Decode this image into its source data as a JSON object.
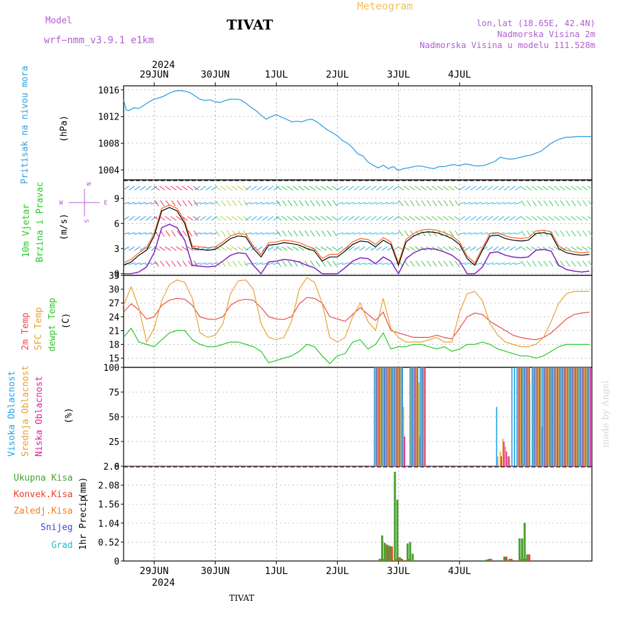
{
  "header": {
    "model_label": "Model",
    "model_name": "wrf−nmm_v3.9.1  e1km",
    "title": "TIVAT",
    "product": "Meteogram",
    "coords": "lon,lat (18.65E, 42.4N)",
    "height": "Nadmorska Visina 2m",
    "model_height": "Nadmorska Visina u modelu 111.528m",
    "footer_station": "TIVAT",
    "credit": "made by Angel"
  },
  "colors": {
    "pressure": "#2f9fe0",
    "t2m": "#e84a4a",
    "tsfc": "#e8a030",
    "dewpt": "#28c828",
    "cloud_high": "#20a0e8",
    "cloud_mid": "#e8a030",
    "cloud_low": "#e020a0",
    "precip_total": "#48a030",
    "precip_conv": "#e84030",
    "precip_strat": "#f08020",
    "snow": "#4040e0",
    "hail": "#20c0c0",
    "label_purple": "#b060d0"
  },
  "chart_data": [
    {
      "type": "line",
      "title": "",
      "ylabel": "Pritisak na nivou mora",
      "yunit": "(hPa)",
      "ylim": [
        1002.5,
        1016.6
      ],
      "yticks": [
        "1016",
        "1012",
        "1008",
        "1004"
      ],
      "x_hours_from_29jun_00z": [
        -12,
        -11,
        -10,
        -8,
        -6,
        -4,
        -2,
        0,
        2,
        4,
        6,
        8,
        10,
        12,
        14,
        16,
        18,
        20,
        22,
        24,
        26,
        28,
        30,
        32,
        34,
        36,
        38,
        40,
        42,
        44,
        46,
        48,
        50,
        52,
        54,
        56,
        58,
        60,
        62,
        64,
        66,
        68,
        70,
        72,
        74,
        76,
        78,
        80,
        82,
        84,
        86,
        88,
        90,
        92,
        94,
        96,
        98,
        100,
        102,
        104,
        106,
        108,
        110,
        112,
        114,
        116,
        118,
        120,
        122,
        124,
        126,
        128,
        130,
        132,
        134,
        136,
        138,
        140,
        142,
        144,
        146,
        148,
        150,
        152,
        154,
        156,
        158,
        160,
        162,
        164,
        166,
        168,
        170,
        172
      ],
      "values": [
        1014.5,
        1013.0,
        1012.9,
        1013.3,
        1013.2,
        1013.7,
        1014.2,
        1014.6,
        1014.8,
        1015.1,
        1015.5,
        1015.8,
        1015.9,
        1015.8,
        1015.6,
        1015.1,
        1014.6,
        1014.4,
        1014.5,
        1014.2,
        1014.1,
        1014.4,
        1014.6,
        1014.6,
        1014.5,
        1014.0,
        1013.4,
        1012.9,
        1012.2,
        1011.6,
        1012.0,
        1012.3,
        1011.9,
        1011.6,
        1011.2,
        1011.3,
        1011.2,
        1011.5,
        1011.6,
        1011.2,
        1010.6,
        1010.0,
        1009.6,
        1009.1,
        1008.4,
        1008.0,
        1007.3,
        1006.4,
        1006.1,
        1005.2,
        1004.7,
        1004.3,
        1004.7,
        1004.2,
        1004.5,
        1003.9,
        1004.2,
        1004.3,
        1004.5,
        1004.6,
        1004.5,
        1004.3,
        1004.2,
        1004.5,
        1004.5,
        1004.7,
        1004.8,
        1004.6,
        1004.9,
        1004.8,
        1004.6,
        1004.6,
        1004.7,
        1005.0,
        1005.3,
        1005.9,
        1005.7,
        1005.6,
        1005.7,
        1005.9,
        1006.1,
        1006.2,
        1006.5,
        1006.8,
        1007.4,
        1008.0,
        1008.4,
        1008.7,
        1008.9,
        1008.9,
        1009.0,
        1009.0,
        1009.0,
        1009.0
      ]
    },
    {
      "type": "line",
      "title": "",
      "ylabel": "10m Vjetar",
      "ylabel2": "Brzina i Pravac",
      "yunit": "(m/s)",
      "ylim": [
        -0.2,
        11.2
      ],
      "yticks": [
        "9",
        "6",
        "3",
        "0"
      ],
      "compass": {
        "n": "N",
        "s": "S",
        "e": "E",
        "w": "W"
      },
      "x_hours_from_29jun_00z": [
        -12,
        -9,
        -6,
        -3,
        0,
        3,
        6,
        9,
        12,
        15,
        18,
        21,
        24,
        27,
        30,
        33,
        36,
        39,
        42,
        45,
        48,
        51,
        54,
        57,
        60,
        63,
        66,
        69,
        72,
        75,
        78,
        81,
        84,
        87,
        90,
        93,
        96,
        99,
        102,
        105,
        108,
        111,
        114,
        117,
        120,
        123,
        126,
        129,
        132,
        135,
        138,
        141,
        144,
        147,
        150,
        153,
        156,
        159,
        162,
        165,
        168,
        171
      ],
      "values": [
        1.0,
        1.4,
        2.2,
        2.8,
        4.5,
        7.5,
        7.9,
        7.5,
        6.0,
        3.0,
        2.9,
        2.8,
        2.9,
        3.5,
        4.2,
        4.5,
        4.4,
        3.0,
        2.0,
        3.4,
        3.5,
        3.7,
        3.6,
        3.4,
        3.0,
        2.7,
        1.5,
        2.0,
        2.0,
        2.7,
        3.5,
        3.9,
        3.8,
        3.2,
        4.0,
        3.5,
        1.0,
        3.8,
        4.5,
        4.9,
        5.0,
        4.9,
        4.6,
        4.2,
        3.5,
        1.8,
        1.0,
        2.8,
        4.5,
        4.6,
        4.2,
        4.0,
        3.9,
        4.0,
        4.8,
        4.9,
        4.7,
        3.0,
        2.5,
        2.3,
        2.2,
        2.3
      ],
      "arrow_bands": [
        {
          "x0": -12,
          "x1": 0,
          "color": "#2090e0"
        },
        {
          "x0": 0,
          "x1": 16,
          "color": "#e83050"
        },
        {
          "x0": 16,
          "x1": 24,
          "color": "#20a0e8"
        },
        {
          "x0": 24,
          "x1": 36,
          "color": "#a0d830"
        },
        {
          "x0": 36,
          "x1": 48,
          "color": "#20a8e8"
        },
        {
          "x0": 48,
          "x1": 72,
          "color": "#28c060"
        },
        {
          "x0": 72,
          "x1": 96,
          "color": "#20b8d0"
        },
        {
          "x0": 96,
          "x1": 120,
          "color": "#50c040"
        },
        {
          "x0": 120,
          "x1": 144,
          "color": "#20b0e0"
        },
        {
          "x0": 144,
          "x1": 172,
          "color": "#40c870"
        }
      ]
    },
    {
      "type": "line",
      "title": "",
      "ylabel": "2m Temp",
      "ylabel2": "SFC Temp",
      "ylabel3": "dewpt Temp",
      "yunit": "(C)",
      "ylim": [
        13,
        33
      ],
      "yticks": [
        "33",
        "30",
        "27",
        "24",
        "21",
        "18",
        "15"
      ],
      "x_hours_from_29jun_00z": [
        -12,
        -9,
        -6,
        -3,
        0,
        3,
        6,
        9,
        12,
        15,
        18,
        21,
        24,
        27,
        30,
        33,
        36,
        39,
        42,
        45,
        48,
        51,
        54,
        57,
        60,
        63,
        66,
        69,
        72,
        75,
        78,
        81,
        84,
        87,
        90,
        93,
        96,
        99,
        102,
        105,
        108,
        111,
        114,
        117,
        120,
        123,
        126,
        129,
        132,
        135,
        138,
        141,
        144,
        147,
        150,
        153,
        156,
        159,
        162,
        165,
        168,
        171
      ],
      "series": [
        {
          "name": "2m Temp",
          "color_key": "t2m",
          "values": [
            25.0,
            26.8,
            25.5,
            23.5,
            24.0,
            26.5,
            27.6,
            28.0,
            27.8,
            26.5,
            24.0,
            23.5,
            23.4,
            24.0,
            26.5,
            27.5,
            27.8,
            27.6,
            26.0,
            24.0,
            23.5,
            23.4,
            24.0,
            26.8,
            28.2,
            28.0,
            27.0,
            24.0,
            23.5,
            23.0,
            24.5,
            26.0,
            24.5,
            23.2,
            25.0,
            21.0,
            20.5,
            20.0,
            19.5,
            19.5,
            19.5,
            20.0,
            19.5,
            19.2,
            21.5,
            24.0,
            24.8,
            24.5,
            23.0,
            22.0,
            21.0,
            20.0,
            19.5,
            19.2,
            19.0,
            19.5,
            20.5,
            22.0,
            23.5,
            24.5,
            24.8,
            25.0
          ]
        },
        {
          "name": "SFC Temp",
          "color_key": "tsfc",
          "values": [
            26.5,
            30.5,
            26.0,
            18.5,
            21.5,
            27.5,
            31.0,
            32.0,
            31.5,
            28.0,
            20.5,
            19.5,
            20.0,
            22.5,
            29.0,
            31.8,
            32.0,
            30.0,
            22.5,
            19.5,
            19.0,
            19.5,
            23.0,
            30.0,
            32.5,
            31.5,
            27.0,
            19.5,
            18.5,
            19.5,
            24.0,
            27.0,
            23.0,
            21.0,
            28.0,
            21.5,
            19.5,
            18.5,
            18.5,
            18.5,
            19.0,
            19.5,
            18.5,
            18.5,
            25.0,
            29.0,
            29.5,
            27.5,
            22.5,
            20.0,
            18.5,
            18.0,
            17.5,
            17.5,
            18.0,
            19.5,
            23.0,
            27.0,
            29.0,
            29.5,
            29.5,
            29.5
          ]
        },
        {
          "name": "dewpt Temp",
          "color_key": "dewpt",
          "values": [
            19.5,
            21.5,
            18.5,
            18.0,
            17.5,
            19.0,
            20.5,
            21.0,
            21.0,
            19.0,
            18.0,
            17.5,
            17.5,
            18.0,
            18.5,
            18.5,
            18.0,
            17.5,
            16.5,
            14.0,
            14.5,
            15.0,
            15.5,
            16.5,
            18.0,
            17.5,
            15.5,
            13.8,
            15.5,
            16.0,
            18.5,
            19.0,
            17.0,
            18.0,
            20.5,
            17.0,
            17.5,
            17.5,
            18.0,
            18.0,
            17.5,
            17.0,
            17.5,
            16.5,
            17.0,
            18.0,
            18.0,
            18.5,
            18.0,
            17.0,
            16.5,
            16.0,
            15.5,
            15.5,
            15.0,
            15.5,
            16.5,
            17.5,
            18.0,
            18.0,
            18.0,
            18.0
          ]
        }
      ]
    },
    {
      "type": "bar",
      "title": "",
      "ylabel": "Visoka Oblacnost",
      "ylabel2": "Srednja Oblacnost",
      "ylabel3": "Niska Oblacnost",
      "yunit": "(%)",
      "ylim": [
        0,
        100
      ],
      "yticks": [
        "100",
        "75",
        "50",
        "25",
        "0"
      ],
      "x_hours_from_29jun_00z": [
        87,
        88,
        89,
        90,
        91,
        92,
        93,
        94,
        95,
        96,
        97,
        98,
        99,
        100,
        101,
        102,
        103,
        104,
        105,
        106,
        130,
        131,
        132,
        133,
        134,
        135,
        136,
        137,
        138,
        139,
        140,
        141,
        142,
        143,
        144,
        145,
        146,
        147,
        148,
        149,
        150,
        151,
        152,
        153,
        154,
        155,
        156,
        157,
        158,
        159,
        160,
        161,
        162,
        163,
        164,
        165,
        166,
        167,
        168,
        169,
        170,
        171
      ],
      "series": [
        {
          "name": "Visoka Oblacnost",
          "color_key": "cloud_high",
          "values": [
            100,
            100,
            100,
            100,
            100,
            100,
            100,
            100,
            100,
            100,
            100,
            100,
            0,
            0,
            100,
            100,
            100,
            100,
            100,
            100,
            0,
            0,
            0,
            0,
            0,
            60,
            0,
            0,
            0,
            0,
            0,
            100,
            100,
            100,
            100,
            100,
            100,
            100,
            85,
            100,
            100,
            100,
            100,
            100,
            100,
            100,
            100,
            100,
            100,
            100,
            100,
            100,
            100,
            100,
            100,
            100,
            100,
            100,
            100,
            100,
            100,
            100
          ]
        },
        {
          "name": "Srednja Oblacnost",
          "color_key": "cloud_mid",
          "values": [
            100,
            100,
            100,
            100,
            100,
            100,
            100,
            100,
            100,
            100,
            100,
            60,
            0,
            0,
            100,
            100,
            100,
            85,
            100,
            100,
            0,
            0,
            0,
            0,
            0,
            10,
            15,
            28,
            20,
            10,
            0,
            0,
            0,
            100,
            100,
            100,
            100,
            100,
            0,
            100,
            100,
            100,
            100,
            100,
            100,
            100,
            100,
            100,
            100,
            100,
            100,
            100,
            100,
            100,
            100,
            100,
            100,
            100,
            100,
            100,
            100,
            100
          ]
        },
        {
          "name": "Niska Oblacnost",
          "color_key": "cloud_low",
          "values": [
            100,
            100,
            100,
            100,
            100,
            100,
            100,
            100,
            100,
            100,
            100,
            30,
            0,
            0,
            100,
            100,
            100,
            30,
            100,
            100,
            0,
            0,
            0,
            0,
            0,
            0,
            10,
            25,
            15,
            10,
            0,
            0,
            0,
            100,
            100,
            100,
            100,
            100,
            0,
            100,
            100,
            100,
            40,
            100,
            100,
            100,
            100,
            100,
            100,
            100,
            100,
            100,
            100,
            100,
            100,
            100,
            100,
            100,
            100,
            100,
            100,
            100
          ]
        }
      ]
    },
    {
      "type": "bar",
      "title": "",
      "ylabel": "1hr Precip",
      "yunit": "(mm)",
      "ylim": [
        0,
        2.6
      ],
      "yticks": [
        "2.6",
        "2.08",
        "1.56",
        "1.04",
        "0.52",
        "0"
      ],
      "legend": [
        "Ukupna  Kisa",
        "Konvek.Kisa",
        "Zaledj.Kisa",
        "Snijeg",
        "Grad"
      ],
      "x_hours_from_29jun_00z": [
        89,
        90,
        91,
        92,
        93,
        94,
        95,
        96,
        97,
        100,
        101,
        102,
        131,
        132,
        138,
        140,
        144,
        145,
        146,
        147
      ],
      "series": [
        {
          "name": "Ukupna  Kisa",
          "color_key": "precip_total",
          "values": [
            0.06,
            0.7,
            0.5,
            0.45,
            0.42,
            0,
            2.45,
            1.68,
            0.1,
            0.48,
            0.52,
            0.2,
            0.04,
            0.06,
            0.12,
            0.06,
            0.62,
            0.62,
            1.05,
            0.18
          ]
        },
        {
          "name": "Konvek.Kisa",
          "color_key": "precip_conv",
          "values": [
            0.06,
            0.06,
            0.45,
            0.4,
            0.4,
            0,
            0.06,
            0.1,
            0.06,
            0.06,
            0,
            0,
            0.04,
            0.06,
            0.12,
            0.06,
            0.06,
            0.06,
            0.06,
            0.18
          ]
        }
      ]
    }
  ],
  "axis": {
    "year": "2024",
    "day_labels": [
      "29JUN",
      "30JUN",
      "1JUL",
      "2JUL",
      "3JUL",
      "4JUL"
    ],
    "day_hours": [
      0,
      24,
      48,
      72,
      96,
      120
    ],
    "x_range_hours": [
      -12,
      172
    ]
  }
}
